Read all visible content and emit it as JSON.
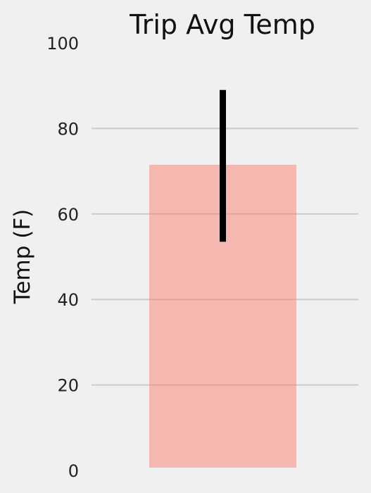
{
  "chart_data": {
    "type": "bar",
    "title": "Trip Avg Temp",
    "xlabel": "",
    "ylabel": "Temp (F)",
    "categories": [
      ""
    ],
    "values": [
      71.5
    ],
    "error_range": [
      53.5,
      89.0
    ],
    "ylim": [
      0,
      100
    ],
    "yticks": [
      0,
      20,
      40,
      60,
      80,
      100
    ],
    "grid": true,
    "bar_color": "#fa8072",
    "bar_alpha": 0.5,
    "error_color": "#000000",
    "background": "#f0f0f0",
    "grid_color": "#cbcbcb"
  }
}
